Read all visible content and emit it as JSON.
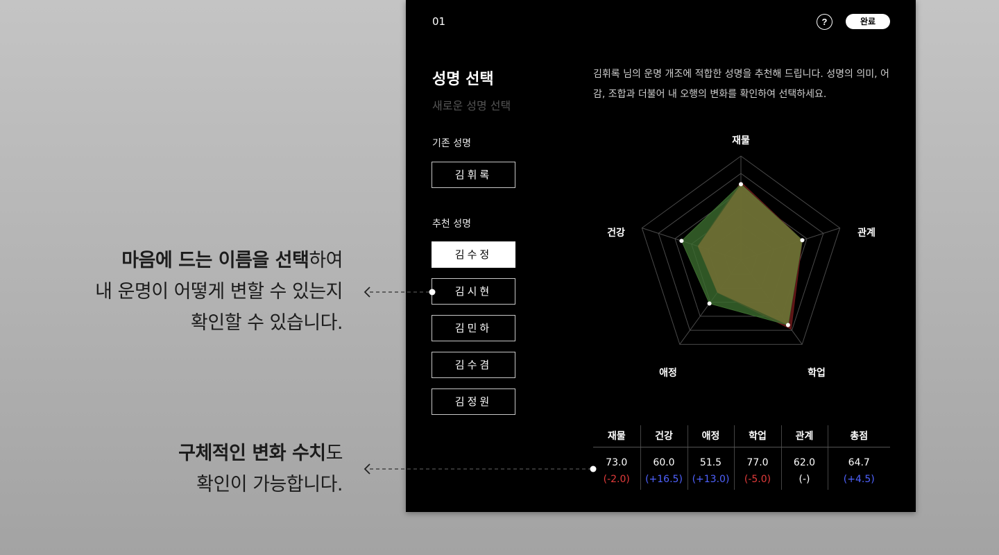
{
  "annotations": {
    "first": {
      "line1_bold": "마음에 드는 이름을 선택",
      "line1_rest": "하여",
      "line2": "내 운명이 어떻게 변할 수 있는지",
      "line3": "확인할 수 있습니다."
    },
    "second": {
      "line1_bold": "구체적인 변화 수치",
      "line1_rest": "도",
      "line2": "확인이 가능합니다."
    }
  },
  "header": {
    "step": "01",
    "help_label": "?",
    "done_label": "완료",
    "help_icon": "question-circle-icon"
  },
  "page": {
    "title": "성명 선택",
    "subtitle": "새로운 성명 선택",
    "description": "김휘록 님의 운명 개조에 적합한 성명을 추천해 드립니다. 성명의 의미, 어감, 조합과 더불어 내 오행의 변화를 확인하여 선택하세요."
  },
  "original": {
    "label": "기존 성명",
    "name": "김휘록"
  },
  "recommended": {
    "label": "추천 성명",
    "names": [
      "김수정",
      "김시현",
      "김민하",
      "김수겸",
      "김정원"
    ],
    "selected_index": 0
  },
  "colors": {
    "selected_fill": "#3b6b2e",
    "original_fill": "#6b1a1a",
    "negative": "#e33b3b",
    "positive": "#4f62ff"
  },
  "chart_data": {
    "type": "radar",
    "axes": [
      "재물",
      "관계",
      "학업",
      "애정",
      "건강"
    ],
    "range": [
      0,
      100
    ],
    "series": [
      {
        "values": [
          75.0,
          62.0,
          82.0,
          38.5,
          43.5
        ]
      },
      {
        "values": [
          73.0,
          62.0,
          77.0,
          51.5,
          60.0
        ]
      }
    ]
  },
  "scores": {
    "columns": [
      "재물",
      "건강",
      "애정",
      "학업",
      "관계",
      "총점"
    ],
    "values": [
      "73.0",
      "60.0",
      "51.5",
      "77.0",
      "62.0",
      "64.7"
    ],
    "deltas": [
      "(-2.0)",
      "(+16.5)",
      "(+13.0)",
      "(-5.0)",
      "(-)",
      "(+4.5)"
    ],
    "delta_signs": [
      "neg",
      "pos",
      "pos",
      "neg",
      "neu",
      "pos"
    ]
  }
}
